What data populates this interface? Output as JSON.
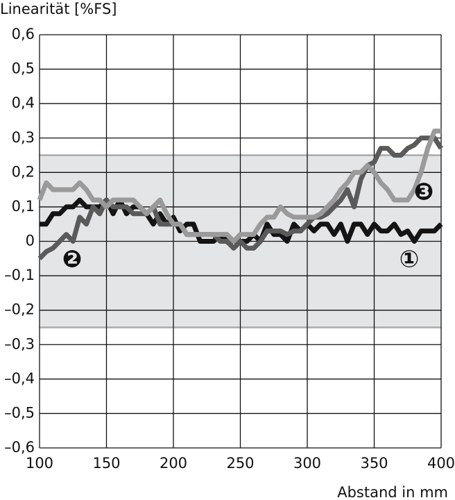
{
  "chart_data": {
    "type": "line",
    "y_label": "Linearität [%FS]",
    "x_label": "Abstand in mm",
    "xlim": [
      100,
      400
    ],
    "xticks": [
      100,
      150,
      200,
      250,
      300,
      350,
      400
    ],
    "ylim": [
      -0.6,
      0.6
    ],
    "yticks": [
      {
        "value": 0.6,
        "label": "0,6"
      },
      {
        "value": 0.5,
        "label": "0,5"
      },
      {
        "value": 0.4,
        "label": "0,4"
      },
      {
        "value": 0.3,
        "label": "0,3"
      },
      {
        "value": 0.2,
        "label": "0,2"
      },
      {
        "value": 0.1,
        "label": "0,1"
      },
      0,
      {
        "value": -0.1,
        "label": "–0,1"
      },
      {
        "value": -0.2,
        "label": "–0,2"
      },
      {
        "value": -0.3,
        "label": "–0,3"
      },
      {
        "value": -0.4,
        "label": "–0,4"
      },
      {
        "value": -0.5,
        "label": "–0,5"
      },
      {
        "value": -0.6,
        "label": "–0,6"
      }
    ],
    "grid": true,
    "tolerance_band": [
      -0.25,
      0.25
    ],
    "band_color": "#e4e5e7",
    "x": [
      100,
      105,
      110,
      115,
      120,
      125,
      130,
      135,
      140,
      145,
      150,
      155,
      160,
      165,
      170,
      175,
      180,
      185,
      190,
      195,
      200,
      205,
      210,
      215,
      220,
      225,
      230,
      235,
      240,
      245,
      250,
      255,
      260,
      265,
      270,
      275,
      280,
      285,
      290,
      295,
      300,
      305,
      310,
      315,
      320,
      325,
      330,
      335,
      340,
      345,
      350,
      355,
      360,
      365,
      370,
      375,
      380,
      385,
      390,
      395,
      400
    ],
    "series": [
      {
        "name": "①",
        "color": "#141414",
        "values": [
          0.05,
          0.05,
          0.08,
          0.08,
          0.1,
          0.1,
          0.12,
          0.1,
          0.1,
          0.1,
          0.12,
          0.08,
          0.12,
          0.08,
          0.1,
          0.1,
          0.08,
          0.05,
          0.08,
          0.05,
          0.07,
          0.03,
          0.05,
          0.05,
          0,
          0,
          0,
          0.02,
          0,
          0,
          0,
          0,
          0.02,
          0,
          0.05,
          0.02,
          0.02,
          0,
          0.05,
          0.03,
          0.05,
          0.03,
          0.05,
          0.05,
          0.02,
          0.05,
          0,
          0.05,
          0.05,
          0.02,
          0.05,
          0.03,
          0.03,
          0.05,
          0.02,
          0.03,
          0,
          0.03,
          0.03,
          0.03,
          0.05
        ]
      },
      {
        "name": "❷",
        "color": "#5a5a5a",
        "values": [
          -0.05,
          -0.03,
          -0.02,
          0,
          0.02,
          0,
          0.07,
          0.05,
          0.1,
          0.08,
          0.12,
          0.1,
          0.1,
          0.1,
          0.08,
          0.08,
          0.08,
          0.1,
          0.05,
          0.05,
          0.05,
          0.05,
          0.02,
          0.02,
          0.02,
          0.02,
          0.02,
          0,
          0,
          -0.02,
          0,
          -0.02,
          -0.02,
          0,
          0.03,
          0.03,
          0.03,
          0.02,
          0.03,
          0.03,
          0.05,
          0.07,
          0.07,
          0.08,
          0.1,
          0.12,
          0.15,
          0.1,
          0.18,
          0.22,
          0.23,
          0.27,
          0.27,
          0.25,
          0.25,
          0.27,
          0.28,
          0.3,
          0.3,
          0.3,
          0.27
        ]
      },
      {
        "name": "❸",
        "color": "#9a9a9a",
        "values": [
          0.12,
          0.17,
          0.15,
          0.15,
          0.15,
          0.15,
          0.17,
          0.15,
          0.12,
          0.12,
          0.1,
          0.12,
          0.12,
          0.12,
          0.12,
          0.1,
          0.08,
          0.1,
          0.12,
          0.08,
          0.05,
          0.05,
          0.02,
          0.02,
          0.02,
          0.02,
          0.02,
          0.02,
          0.02,
          0,
          0.02,
          0.02,
          0.02,
          0.05,
          0.07,
          0.07,
          0.1,
          0.08,
          0.07,
          0.07,
          0.07,
          0.07,
          0.08,
          0.1,
          0.12,
          0.15,
          0.17,
          0.2,
          0.2,
          0.22,
          0.2,
          0.17,
          0.15,
          0.12,
          0.12,
          0.12,
          0.15,
          0.2,
          0.27,
          0.32,
          0.32
        ]
      }
    ]
  }
}
